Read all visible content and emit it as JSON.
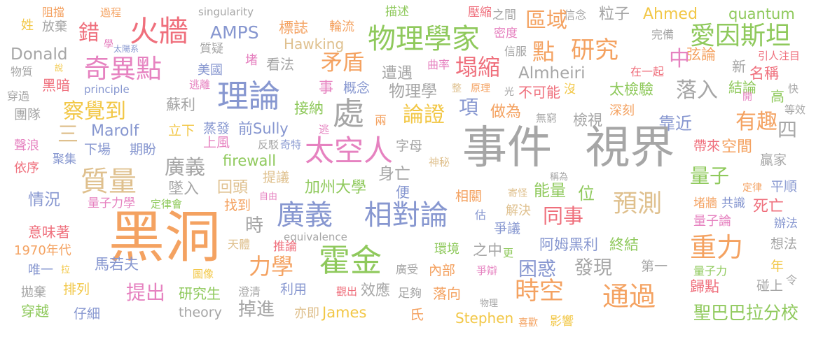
{
  "palette": {
    "gray": "#a6a6a6",
    "orange": "#f4a261",
    "red": "#ef6f7c",
    "pink": "#e682c0",
    "purple": "#8797d0",
    "green": "#8fc95c",
    "yellow": "#f2c746",
    "tan": "#dfc08e"
  },
  "words": [
    {
      "text": "阻擋",
      "color": "orange"
    },
    {
      "text": "過程",
      "color": "orange"
    },
    {
      "text": "singularity",
      "color": "gray"
    },
    {
      "text": "描述",
      "color": "green"
    },
    {
      "text": "壓縮",
      "color": "red"
    },
    {
      "text": "之間",
      "color": "gray"
    },
    {
      "text": "信念",
      "color": "gray"
    },
    {
      "text": "粒子",
      "color": "gray"
    },
    {
      "text": "Ahmed",
      "color": "yellow"
    },
    {
      "text": "quantum",
      "color": "green"
    },
    {
      "text": "姓",
      "color": "yellow"
    },
    {
      "text": "放棄",
      "color": "gray"
    },
    {
      "text": "錯",
      "color": "red"
    },
    {
      "text": "學",
      "color": "pink"
    },
    {
      "text": "太陽系",
      "color": "purple"
    },
    {
      "text": "火牆",
      "color": "red"
    },
    {
      "text": "AMPS",
      "color": "purple"
    },
    {
      "text": "標誌",
      "color": "orange"
    },
    {
      "text": "輪流",
      "color": "orange"
    },
    {
      "text": "物理學家",
      "color": "green"
    },
    {
      "text": "密度",
      "color": "pink"
    },
    {
      "text": "區域",
      "color": "orange"
    },
    {
      "text": "完備",
      "color": "gray"
    },
    {
      "text": "愛因斯坦",
      "color": "green"
    },
    {
      "text": "Donald",
      "color": "gray"
    },
    {
      "text": "質疑",
      "color": "gray"
    },
    {
      "text": "Hawking",
      "color": "tan"
    },
    {
      "text": "信服",
      "color": "gray"
    },
    {
      "text": "點",
      "color": "orange"
    },
    {
      "text": "研究",
      "color": "orange"
    },
    {
      "text": "弦論",
      "color": "orange"
    },
    {
      "text": "引人注目",
      "color": "red"
    },
    {
      "text": "物質",
      "color": "gray"
    },
    {
      "text": "說",
      "color": "yellow"
    },
    {
      "text": "奇異點",
      "color": "pink"
    },
    {
      "text": "美國",
      "color": "purple"
    },
    {
      "text": "堵",
      "color": "pink"
    },
    {
      "text": "看法",
      "color": "gray"
    },
    {
      "text": "矛盾",
      "color": "orange"
    },
    {
      "text": "曲率",
      "color": "pink"
    },
    {
      "text": "塌縮",
      "color": "red"
    },
    {
      "text": "中",
      "color": "pink"
    },
    {
      "text": "新",
      "color": "gray"
    },
    {
      "text": "名稱",
      "color": "red"
    },
    {
      "text": "穿過",
      "color": "gray"
    },
    {
      "text": "黑暗",
      "color": "red"
    },
    {
      "text": "principle",
      "color": "purple"
    },
    {
      "text": "逃離",
      "color": "pink"
    },
    {
      "text": "理論",
      "color": "purple"
    },
    {
      "text": "事",
      "color": "pink"
    },
    {
      "text": "概念",
      "color": "purple"
    },
    {
      "text": "遭遇",
      "color": "gray"
    },
    {
      "text": "物理學",
      "color": "gray"
    },
    {
      "text": "整",
      "color": "tan"
    },
    {
      "text": "原理",
      "color": "orange"
    },
    {
      "text": "光",
      "color": "gray"
    },
    {
      "text": "不可能",
      "color": "red"
    },
    {
      "text": "沒",
      "color": "yellow"
    },
    {
      "text": "Almheiri",
      "color": "gray"
    },
    {
      "text": "在一起",
      "color": "red"
    },
    {
      "text": "太檢驗",
      "color": "green"
    },
    {
      "text": "落入",
      "color": "gray"
    },
    {
      "text": "結論",
      "color": "green"
    },
    {
      "text": "高",
      "color": "green"
    },
    {
      "text": "快",
      "color": "gray"
    },
    {
      "text": "察覺到",
      "color": "yellow"
    },
    {
      "text": "團隊",
      "color": "gray"
    },
    {
      "text": "蘇利",
      "color": "gray"
    },
    {
      "text": "處",
      "color": "gray"
    },
    {
      "text": "接納",
      "color": "green"
    },
    {
      "text": "論證",
      "color": "yellow"
    },
    {
      "text": "項",
      "color": "purple"
    },
    {
      "text": "做為",
      "color": "orange"
    },
    {
      "text": "深刻",
      "color": "orange"
    },
    {
      "text": "開",
      "color": "pink"
    },
    {
      "text": "等效",
      "color": "gray"
    },
    {
      "text": "有趣",
      "color": "orange"
    },
    {
      "text": "無窮",
      "color": "gray"
    },
    {
      "text": "檢視",
      "color": "gray"
    },
    {
      "text": "靠近",
      "color": "purple"
    },
    {
      "text": "四",
      "color": "gray"
    },
    {
      "text": "三",
      "color": "tan"
    },
    {
      "text": "Marolf",
      "color": "purple"
    },
    {
      "text": "立下",
      "color": "yellow"
    },
    {
      "text": "蒸發",
      "color": "purple"
    },
    {
      "text": "前Sully",
      "color": "purple"
    },
    {
      "text": "逃",
      "color": "pink"
    },
    {
      "text": "兩",
      "color": "orange"
    },
    {
      "text": "事件 視界",
      "color": "gray"
    },
    {
      "text": "聲浪",
      "color": "pink"
    },
    {
      "text": "下場",
      "color": "purple"
    },
    {
      "text": "期盼",
      "color": "purple"
    },
    {
      "text": "上風",
      "color": "pink"
    },
    {
      "text": "反駁",
      "color": "gray"
    },
    {
      "text": "奇特",
      "color": "purple"
    },
    {
      "text": "太空人",
      "color": "pink"
    },
    {
      "text": "字母",
      "color": "gray"
    },
    {
      "text": "帶來",
      "color": "red"
    },
    {
      "text": "空間",
      "color": "orange"
    },
    {
      "text": "聚集",
      "color": "purple"
    },
    {
      "text": "依序",
      "color": "red"
    },
    {
      "text": "firewall",
      "color": "green"
    },
    {
      "text": "廣義",
      "color": "gray"
    },
    {
      "text": "身亡",
      "color": "gray"
    },
    {
      "text": "神秘",
      "color": "tan"
    },
    {
      "text": "稱為",
      "color": "gray"
    },
    {
      "text": "贏家",
      "color": "gray"
    },
    {
      "text": "質量",
      "color": "tan"
    },
    {
      "text": "提議",
      "color": "tan"
    },
    {
      "text": "量子",
      "color": "green"
    },
    {
      "text": "墜入",
      "color": "gray"
    },
    {
      "text": "回頭",
      "color": "tan"
    },
    {
      "text": "加州大學",
      "color": "green"
    },
    {
      "text": "便",
      "color": "purple"
    },
    {
      "text": "定律",
      "color": "orange"
    },
    {
      "text": "平順",
      "color": "purple"
    },
    {
      "text": "情況",
      "color": "purple"
    },
    {
      "text": "量子力學",
      "color": "pink"
    },
    {
      "text": "定律會",
      "color": "green"
    },
    {
      "text": "自由",
      "color": "pink"
    },
    {
      "text": "找到",
      "color": "orange"
    },
    {
      "text": "相關",
      "color": "orange"
    },
    {
      "text": "寄怪",
      "color": "tan"
    },
    {
      "text": "能量",
      "color": "green"
    },
    {
      "text": "位",
      "color": "green"
    },
    {
      "text": "預測",
      "color": "tan"
    },
    {
      "text": "堵牆",
      "color": "orange"
    },
    {
      "text": "共識",
      "color": "purple"
    },
    {
      "text": "死亡",
      "color": "red"
    },
    {
      "text": "解決",
      "color": "tan"
    },
    {
      "text": "估",
      "color": "purple"
    },
    {
      "text": "同事",
      "color": "red"
    },
    {
      "text": "爭議",
      "color": "purple"
    },
    {
      "text": "黑洞",
      "color": "orange"
    },
    {
      "text": "廣義 相對論",
      "color": "purple"
    },
    {
      "text": "時",
      "color": "gray"
    },
    {
      "text": "equivalence",
      "color": "gray"
    },
    {
      "text": "推論",
      "color": "red"
    },
    {
      "text": "天體",
      "color": "tan"
    },
    {
      "text": "量子論",
      "color": "pink"
    },
    {
      "text": "辦法",
      "color": "purple"
    },
    {
      "text": "意味著",
      "color": "red"
    },
    {
      "text": "1970年代",
      "color": "orange"
    },
    {
      "text": "阿姆黑利",
      "color": "purple"
    },
    {
      "text": "終結",
      "color": "green"
    },
    {
      "text": "重力",
      "color": "orange"
    },
    {
      "text": "想法",
      "color": "gray"
    },
    {
      "text": "環境",
      "color": "green"
    },
    {
      "text": "之中",
      "color": "gray"
    },
    {
      "text": "更",
      "color": "green"
    },
    {
      "text": "霍金",
      "color": "green"
    },
    {
      "text": "力學",
      "color": "orange"
    },
    {
      "text": "廣受",
      "color": "gray"
    },
    {
      "text": "內部",
      "color": "orange"
    },
    {
      "text": "困惑",
      "color": "purple"
    },
    {
      "text": "發現",
      "color": "gray"
    },
    {
      "text": "第一",
      "color": "gray"
    },
    {
      "text": "年",
      "color": "yellow"
    },
    {
      "text": "唯一",
      "color": "purple"
    },
    {
      "text": "拉",
      "color": "yellow"
    },
    {
      "text": "馬若夫",
      "color": "purple"
    },
    {
      "text": "圖像",
      "color": "yellow"
    },
    {
      "text": "爭辯",
      "color": "pink"
    },
    {
      "text": "量子力",
      "color": "green"
    },
    {
      "text": "令",
      "color": "gray"
    },
    {
      "text": "歸點",
      "color": "red"
    },
    {
      "text": "碰上",
      "color": "gray"
    },
    {
      "text": "拋棄",
      "color": "gray"
    },
    {
      "text": "排列",
      "color": "yellow"
    },
    {
      "text": "提出",
      "color": "pink"
    },
    {
      "text": "研究生",
      "color": "green"
    },
    {
      "text": "澄清",
      "color": "gray"
    },
    {
      "text": "利用",
      "color": "purple"
    },
    {
      "text": "觀出",
      "color": "red"
    },
    {
      "text": "效應",
      "color": "gray"
    },
    {
      "text": "足夠",
      "color": "gray"
    },
    {
      "text": "落向",
      "color": "orange"
    },
    {
      "text": "物理",
      "color": "gray"
    },
    {
      "text": "時空",
      "color": "orange"
    },
    {
      "text": "通過",
      "color": "orange"
    },
    {
      "text": "穿越",
      "color": "green"
    },
    {
      "text": "仔細",
      "color": "purple"
    },
    {
      "text": "theory",
      "color": "gray"
    },
    {
      "text": "掉進",
      "color": "gray"
    },
    {
      "text": "亦即",
      "color": "tan"
    },
    {
      "text": "James",
      "color": "yellow"
    },
    {
      "text": "氏",
      "color": "orange"
    },
    {
      "text": "Stephen",
      "color": "yellow"
    },
    {
      "text": "喜歡",
      "color": "orange"
    },
    {
      "text": "影響",
      "color": "yellow"
    },
    {
      "text": "聖巴巴拉分校",
      "color": "green"
    }
  ]
}
